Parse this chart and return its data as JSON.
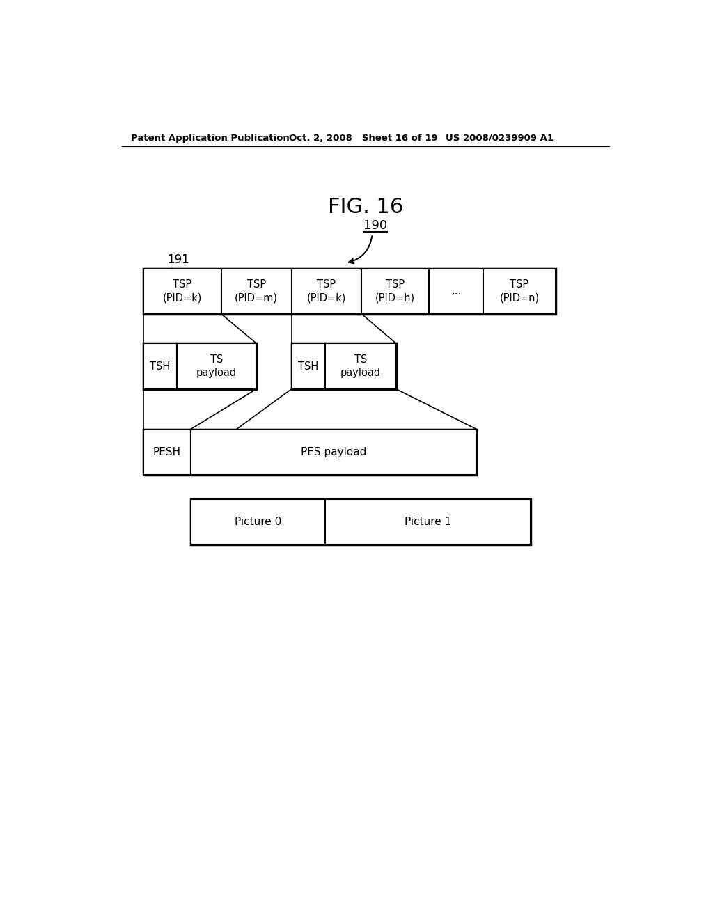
{
  "bg_color": "#ffffff",
  "header_left": "Patent Application Publication",
  "header_mid": "Oct. 2, 2008   Sheet 16 of 19",
  "header_right": "US 2008/0239909 A1",
  "fig_title": "FIG. 16",
  "label_190": "190",
  "label_191": "191",
  "tsp_labels": [
    "TSP\n(PID=k)",
    "TSP\n(PID=m)",
    "TSP\n(PID=k)",
    "TSP\n(PID=h)",
    "...",
    "TSP\n(PID=n)"
  ],
  "tsh_labels_row1": [
    "TSH",
    "TS\npayload"
  ],
  "tsh_labels_row2": [
    "TSH",
    "TS\npayload"
  ],
  "pes_labels": [
    "PESH",
    "PES payload"
  ],
  "picture_labels": [
    "Picture 0",
    "Picture 1"
  ]
}
